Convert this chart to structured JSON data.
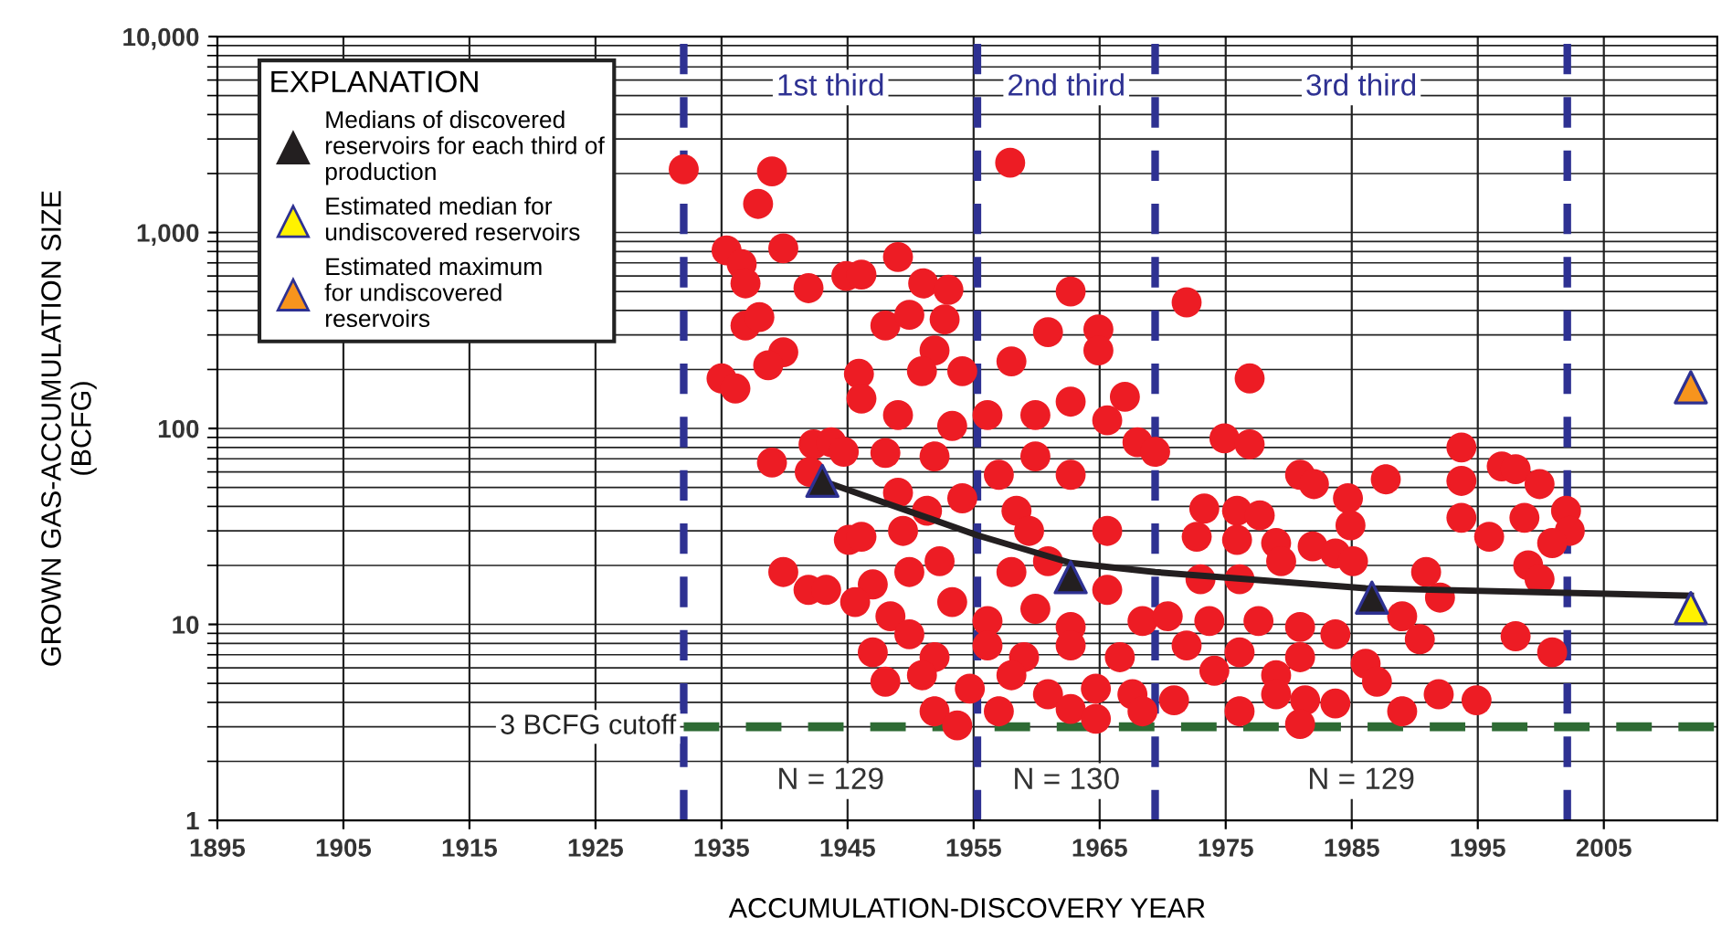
{
  "chart_data": {
    "type": "scatter",
    "xlabel": "ACCUMULATION-DISCOVERY YEAR",
    "ylabel": "GROWN GAS-ACCUMULATION SIZE\n(BCFG)",
    "legend_title": "EXPLANATION",
    "log": "y",
    "xlim": [
      1895,
      2014
    ],
    "xticks": [
      1895,
      1905,
      1915,
      1925,
      1935,
      1945,
      1955,
      1965,
      1975,
      1985,
      1995,
      2005
    ],
    "ylim": [
      1,
      10000
    ],
    "yticks": [
      1,
      10,
      100,
      {
        "value": 1000,
        "label": "1,000"
      },
      {
        "value": 10000,
        "label": "10,000"
      }
    ],
    "grid": true,
    "legend": "top left",
    "series": [
      {
        "color": "#ed1c24",
        "marker": "circle",
        "x": [
          1932.0,
          1939.0,
          1937.9,
          1935.4,
          1936.6,
          1939.9,
          1936.9,
          1941.9,
          1944.9,
          1946.1,
          1949.0,
          1951.0,
          1953.0,
          1936.9,
          1938.0,
          1948.0,
          1949.9,
          1952.7,
          1939.9,
          1938.7,
          1935.0,
          1936.1,
          1945.9,
          1946.1,
          1951.9,
          1950.9,
          1954.1,
          1958.0,
          1962.7,
          1960.9,
          1964.9,
          1964.9,
          1967.0,
          1939.0,
          1942.3,
          1943.7,
          1944.7,
          1948.0,
          1942.0,
          1949.0,
          1951.9,
          1953.3,
          1956.1,
          1959.9,
          1962.7,
          1965.6,
          1968.0,
          1959.9,
          1962.7,
          1957.0,
          1949.0,
          1951.3,
          1954.1,
          1945.1,
          1946.1,
          1949.4,
          1958.4,
          1959.4,
          1965.6,
          1939.9,
          1941.9,
          1943.3,
          1947.0,
          1949.9,
          1952.3,
          1958.0,
          1960.9,
          1965.6,
          1945.6,
          1948.4,
          1953.3,
          1956.1,
          1959.9,
          1962.7,
          1968.4,
          1947.0,
          1949.9,
          1951.9,
          1956.1,
          1959.0,
          1962.7,
          1966.6,
          1948.0,
          1950.9,
          1954.7,
          1958.0,
          1960.9,
          1964.7,
          1967.6,
          1951.9,
          1953.7,
          1957.0,
          1962.7,
          1964.7,
          1968.4,
          1957.9,
          1971.9,
          1976.9,
          1969.4,
          1974.9,
          1976.9,
          1980.9,
          1982.0,
          1984.7,
          1984.9,
          1987.7,
          1993.7,
          1993.7,
          1993.7,
          1996.9,
          1998.0,
          1999.9,
          2002.0,
          2002.3,
          1998.7,
          1995.9,
          2000.9,
          1973.3,
          1975.9,
          1977.7,
          1972.7,
          1975.9,
          1979.0,
          1981.9,
          1983.7,
          1985.1,
          1973.0,
          1976.1,
          1979.4,
          1990.9,
          1992.0,
          1999.0,
          1999.9,
          1970.4,
          1973.7,
          1977.6,
          1980.9,
          1983.7,
          1989.0,
          1990.4,
          1998.0,
          2000.9,
          1971.9,
          1976.1,
          1980.9,
          1986.1,
          1974.1,
          1979.0,
          1987.0,
          1991.9,
          1994.9,
          1970.9,
          1976.1,
          1979.0,
          1981.3,
          1983.7,
          1989.0,
          1980.9
        ],
        "values": [
          2100,
          2050,
          1400,
          810,
          690,
          830,
          550,
          520,
          600,
          610,
          750,
          550,
          510,
          335,
          370,
          335,
          380,
          360,
          245,
          210,
          180,
          160,
          190,
          142,
          250,
          196,
          196,
          220,
          500,
          310,
          320,
          250,
          145,
          67,
          83,
          85,
          76,
          75,
          60,
          117,
          72,
          103,
          117,
          117,
          137,
          110,
          85,
          72,
          58,
          58,
          47,
          38,
          44,
          27,
          28,
          30,
          38,
          30,
          30,
          18.5,
          15,
          15,
          16,
          18.5,
          21,
          18.5,
          21,
          15,
          13,
          11,
          13,
          10.4,
          12,
          9.7,
          10.4,
          7.2,
          8.9,
          6.8,
          7.8,
          6.8,
          7.8,
          6.8,
          5.1,
          5.5,
          4.7,
          5.5,
          4.4,
          4.7,
          4.4,
          3.6,
          3.05,
          3.6,
          3.7,
          3.3,
          3.6,
          2270,
          440,
          180,
          76,
          89,
          83,
          58,
          52,
          44,
          32,
          55,
          80,
          54,
          35,
          64,
          62,
          52,
          38,
          30,
          35,
          28,
          26,
          39,
          38,
          36,
          28,
          27,
          26,
          25,
          23,
          21,
          17,
          17,
          21,
          18.5,
          13.7,
          20,
          17,
          11,
          10.4,
          10.4,
          9.7,
          8.9,
          11,
          8.4,
          8.7,
          7.2,
          7.8,
          7.2,
          6.8,
          6.3,
          5.8,
          5.5,
          5.1,
          4.4,
          4.1,
          4.1,
          3.6,
          4.4,
          4.1,
          3.95,
          3.6,
          3.1
        ]
      },
      {
        "type": "line",
        "color": "#231f20",
        "marker": "none",
        "line_style": "solid",
        "x": [
          1943.0,
          1955.3,
          1962.7,
          1969.4,
          1986.1,
          2011.9
        ],
        "values": [
          54,
          28.5,
          20.6,
          18.5,
          15.3,
          14.0
        ]
      },
      {
        "type": "scatter",
        "name": "Medians of discovered\nreservoirs for each third of\nproduction",
        "color": "#231f20",
        "marker": "triangle",
        "x": [
          1943.0,
          1962.7,
          1986.6
        ],
        "values": [
          54,
          17.4,
          13.7
        ]
      },
      {
        "type": "scatter",
        "name": "Estimated median for\nundiscovered reservoirs",
        "color": "#fff200",
        "marker": "triangle",
        "x": [
          2011.9
        ],
        "values": [
          12.1
        ]
      },
      {
        "type": "scatter",
        "name": "Estimated maximum\nfor undiscovered\nreservoirs",
        "color": "#f7941d",
        "marker": "triangle",
        "x": [
          2011.9
        ],
        "values": [
          162
        ]
      }
    ],
    "ref_lines": [
      {
        "axis": "x",
        "value": 1932,
        "color": "#2e3192",
        "line_style": "dashed"
      },
      {
        "axis": "x",
        "value": 1955.3,
        "color": "#2e3192",
        "line_style": "dashed"
      },
      {
        "axis": "x",
        "value": 1969.4,
        "color": "#2e3192",
        "line_style": "dashed"
      },
      {
        "axis": "x",
        "value": 2002.1,
        "color": "#2e3192",
        "line_style": "dashed"
      },
      {
        "axis": "y",
        "value": 3,
        "label": "3 BCFG cutoff",
        "color": "#2e6b34",
        "line_style": "dashed"
      }
    ],
    "annotations": [
      "1st third",
      "2nd third",
      "3rd third",
      "N = 129",
      "N = 130",
      "N = 129"
    ]
  }
}
